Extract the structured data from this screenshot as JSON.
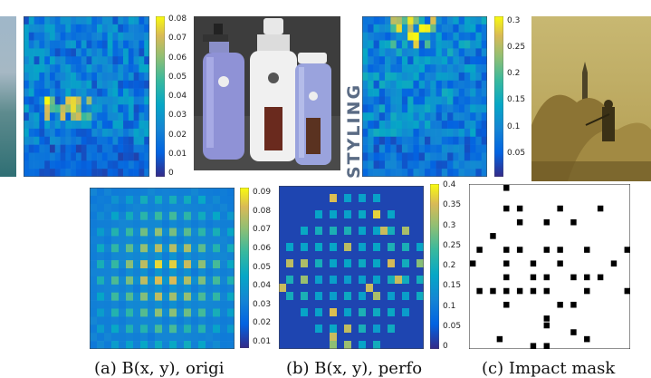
{
  "panels": [
    {
      "id": "top1",
      "grid": [
        20,
        24
      ],
      "max": 0.08,
      "ticks": [
        "0.08",
        "0.07",
        "0.06",
        "0.05",
        "0.04",
        "0.03",
        "0.02",
        "0.01",
        "0"
      ],
      "pattern": "sparse-low"
    },
    {
      "id": "top2",
      "grid": [
        20,
        22
      ],
      "max": 0.3,
      "ticks": [
        "0.3",
        "0.25",
        "0.2",
        "0.15",
        "0.1",
        "0.05"
      ],
      "pattern": "sparse-mid"
    },
    {
      "id": "bottom1",
      "grid": [
        20,
        20
      ],
      "max": 0.09,
      "ticks": [
        "0.09",
        "0.08",
        "0.07",
        "0.06",
        "0.05",
        "0.04",
        "0.03",
        "0.02",
        "0.01"
      ],
      "pattern": "checker"
    },
    {
      "id": "bottom2",
      "grid": [
        20,
        20
      ],
      "max": 0.4,
      "ticks": [
        "0.4",
        "0.35",
        "0.3",
        "0.25",
        "0.2",
        "0.15",
        "0.1",
        "0.05",
        "0"
      ],
      "pattern": "dots"
    }
  ],
  "side_text": "STYLING",
  "captions": {
    "a": "(a) B(x, y), origi",
    "b": "(b) B(x, y), perfo",
    "c": "(c) Impact mask"
  },
  "colors": {
    "parula_low": "#352a87",
    "parula_high": "#f9fb0e"
  }
}
